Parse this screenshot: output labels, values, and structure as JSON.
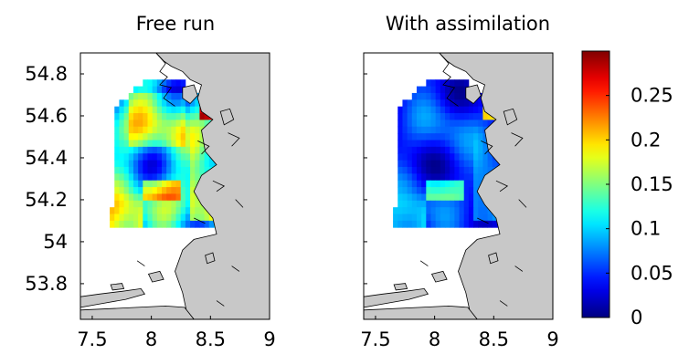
{
  "chart_data": [
    {
      "type": "heatmap",
      "title": "Free run",
      "xlabel": "",
      "ylabel": "",
      "xlim": [
        7.4,
        9.0
      ],
      "ylim": [
        53.63,
        54.9
      ],
      "xticks": [
        7.5,
        8,
        8.5,
        9
      ],
      "xtick_labels": [
        "7.5",
        "8",
        "8.5",
        "9"
      ],
      "yticks": [
        53.8,
        54,
        54.2,
        54.4,
        54.6,
        54.8
      ],
      "ytick_labels": [
        "53.8",
        "54",
        "54.2",
        "54.4",
        "54.6",
        "54.8"
      ],
      "grid": false,
      "land_color": "#c8c8c8",
      "field_extent": {
        "lon": [
          7.64,
          8.56
        ],
        "lat": [
          54.06,
          54.72
        ]
      },
      "value_range": [
        0,
        0.3
      ],
      "typical_value": 0.11
    },
    {
      "type": "heatmap",
      "title": "With assimilation",
      "xlabel": "",
      "ylabel": "",
      "xlim": [
        7.4,
        9.0
      ],
      "ylim": [
        53.63,
        54.9
      ],
      "xticks": [
        7.5,
        8,
        8.5,
        9
      ],
      "xtick_labels": [
        "7.5",
        "8",
        "8.5",
        "9"
      ],
      "grid": false,
      "land_color": "#c8c8c8",
      "field_extent": {
        "lon": [
          7.64,
          8.56
        ],
        "lat": [
          54.06,
          54.72
        ]
      },
      "value_range": [
        0,
        0.3
      ],
      "typical_value": 0.05
    }
  ],
  "colorbar": {
    "colormap": "jet",
    "range": [
      0,
      0.3
    ],
    "ticks": [
      0,
      0.05,
      0.1,
      0.15,
      0.2,
      0.25
    ],
    "tick_labels": [
      "0",
      "0.05",
      "0.1",
      "0.15",
      "0.2",
      "0.25"
    ]
  }
}
